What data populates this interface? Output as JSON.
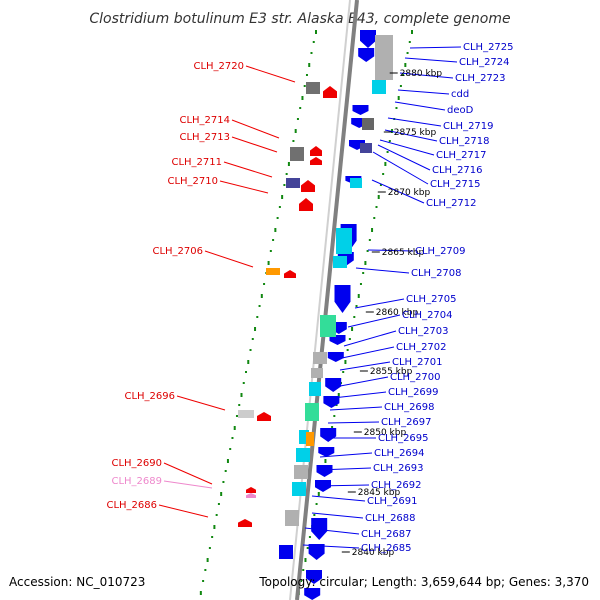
{
  "title": "Clostridium botulinum E3 str. Alaska E43, complete genome",
  "footer": {
    "accession": "Accession: NC_010723",
    "topology": "Topology: circular; Length: 3,659,644 bp; Genes: 3,370"
  },
  "colors": {
    "backbone": "#808080",
    "plus_strand": "#0000ee",
    "minus_strand": "#ee0000",
    "label_plus": "#0000cc",
    "label_minus": "#dd0000",
    "label_pseudo": "#ee88cc",
    "track_dots": "#118811",
    "cds_cyan": "#00d0e8",
    "cds_green": "#33dd99",
    "cds_gray": "#b0b0b0",
    "cds_orange": "#ff9900",
    "cds_purple": "#444499"
  },
  "scale_ticks": [
    "2880 kbp",
    "2875 kbp",
    "2870 kbp",
    "2865 kbp",
    "2860 kbp",
    "2855 kbp",
    "2850 kbp",
    "2845 kbp",
    "2840 kbp"
  ],
  "labels_left": [
    {
      "text": "CLH_2720",
      "style": "normal"
    },
    {
      "text": "CLH_2714",
      "style": "normal"
    },
    {
      "text": "CLH_2713",
      "style": "normal"
    },
    {
      "text": "CLH_2711",
      "style": "normal"
    },
    {
      "text": "CLH_2710",
      "style": "normal"
    },
    {
      "text": "CLH_2706",
      "style": "normal"
    },
    {
      "text": "CLH_2696",
      "style": "normal"
    },
    {
      "text": "CLH_2690",
      "style": "normal"
    },
    {
      "text": "CLH_2689",
      "style": "pseudo"
    },
    {
      "text": "CLH_2686",
      "style": "normal"
    }
  ],
  "labels_right": [
    "CLH_2725",
    "CLH_2724",
    "CLH_2723",
    "cdd",
    "deoD",
    "CLH_2719",
    "CLH_2718",
    "CLH_2717",
    "CLH_2716",
    "CLH_2715",
    "CLH_2712",
    "CLH_2709",
    "CLH_2708",
    "CLH_2705",
    "CLH_2704",
    "CLH_2703",
    "CLH_2702",
    "CLH_2701",
    "CLH_2700",
    "CLH_2699",
    "CLH_2698",
    "CLH_2697",
    "CLH_2695",
    "CLH_2694",
    "CLH_2693",
    "CLH_2692",
    "CLH_2691",
    "CLH_2688",
    "CLH_2687",
    "CLH_2685"
  ]
}
